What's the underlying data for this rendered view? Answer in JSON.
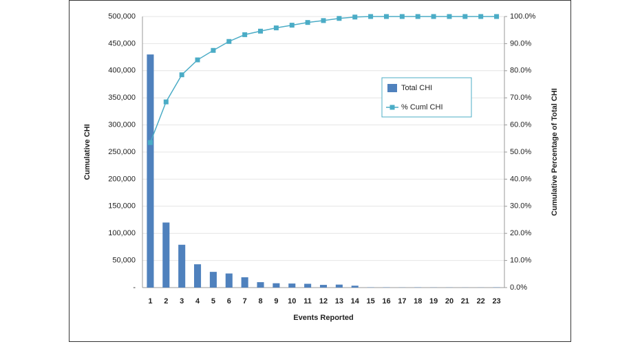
{
  "chart_data": {
    "type": "bar",
    "categories": [
      "1",
      "2",
      "3",
      "4",
      "5",
      "6",
      "7",
      "8",
      "9",
      "10",
      "11",
      "12",
      "13",
      "14",
      "15",
      "16",
      "17",
      "18",
      "19",
      "20",
      "21",
      "22",
      "23"
    ],
    "series": [
      {
        "name": "Total CHI",
        "type": "bar",
        "color": "#4f81bd",
        "values": [
          430000,
          120000,
          79000,
          43000,
          29000,
          26000,
          19000,
          10000,
          8000,
          7500,
          7000,
          5000,
          5500,
          3500,
          500,
          500,
          300,
          500,
          300,
          300,
          200,
          200,
          500
        ]
      },
      {
        "name": "% Cuml CHI",
        "type": "line",
        "axis": "y2",
        "color": "#4bacc6",
        "values": [
          53.5,
          68.5,
          78.5,
          84,
          87.5,
          90.8,
          93.3,
          94.6,
          95.8,
          96.8,
          97.8,
          98.5,
          99.3,
          99.8,
          100,
          100,
          100,
          100,
          100,
          100,
          100,
          100,
          100
        ]
      }
    ],
    "xlabel": "Events Reported",
    "ylabel": "Cumulative CHI",
    "y2label": "Cumulative Percentage of Total CHI",
    "ylim": [
      0,
      500000
    ],
    "yticks": [
      {
        "value": 0,
        "label": "-"
      },
      {
        "value": 50000,
        "label": "50,000"
      },
      {
        "value": 100000,
        "label": "100,000"
      },
      {
        "value": 150000,
        "label": "150,000"
      },
      {
        "value": 200000,
        "label": "200,000"
      },
      {
        "value": 250000,
        "label": "250,000"
      },
      {
        "value": 300000,
        "label": "300,000"
      },
      {
        "value": 350000,
        "label": "350,000"
      },
      {
        "value": 400000,
        "label": "400,000"
      },
      {
        "value": 450000,
        "label": "450,000"
      },
      {
        "value": 500000,
        "label": "500,000"
      }
    ],
    "y2lim": [
      0,
      100
    ],
    "y2ticks": [
      {
        "value": 0,
        "label": "0.0%"
      },
      {
        "value": 10,
        "label": "10.0%"
      },
      {
        "value": 20,
        "label": "20.0%"
      },
      {
        "value": 30,
        "label": "30.0%"
      },
      {
        "value": 40,
        "label": "40.0%"
      },
      {
        "value": 50,
        "label": "50.0%"
      },
      {
        "value": 60,
        "label": "60.0%"
      },
      {
        "value": 70,
        "label": "70.0%"
      },
      {
        "value": 80,
        "label": "80.0%"
      },
      {
        "value": 90,
        "label": "90.0%"
      },
      {
        "value": 100,
        "label": "100.0%"
      }
    ],
    "grid": true,
    "legend": "upper right"
  }
}
